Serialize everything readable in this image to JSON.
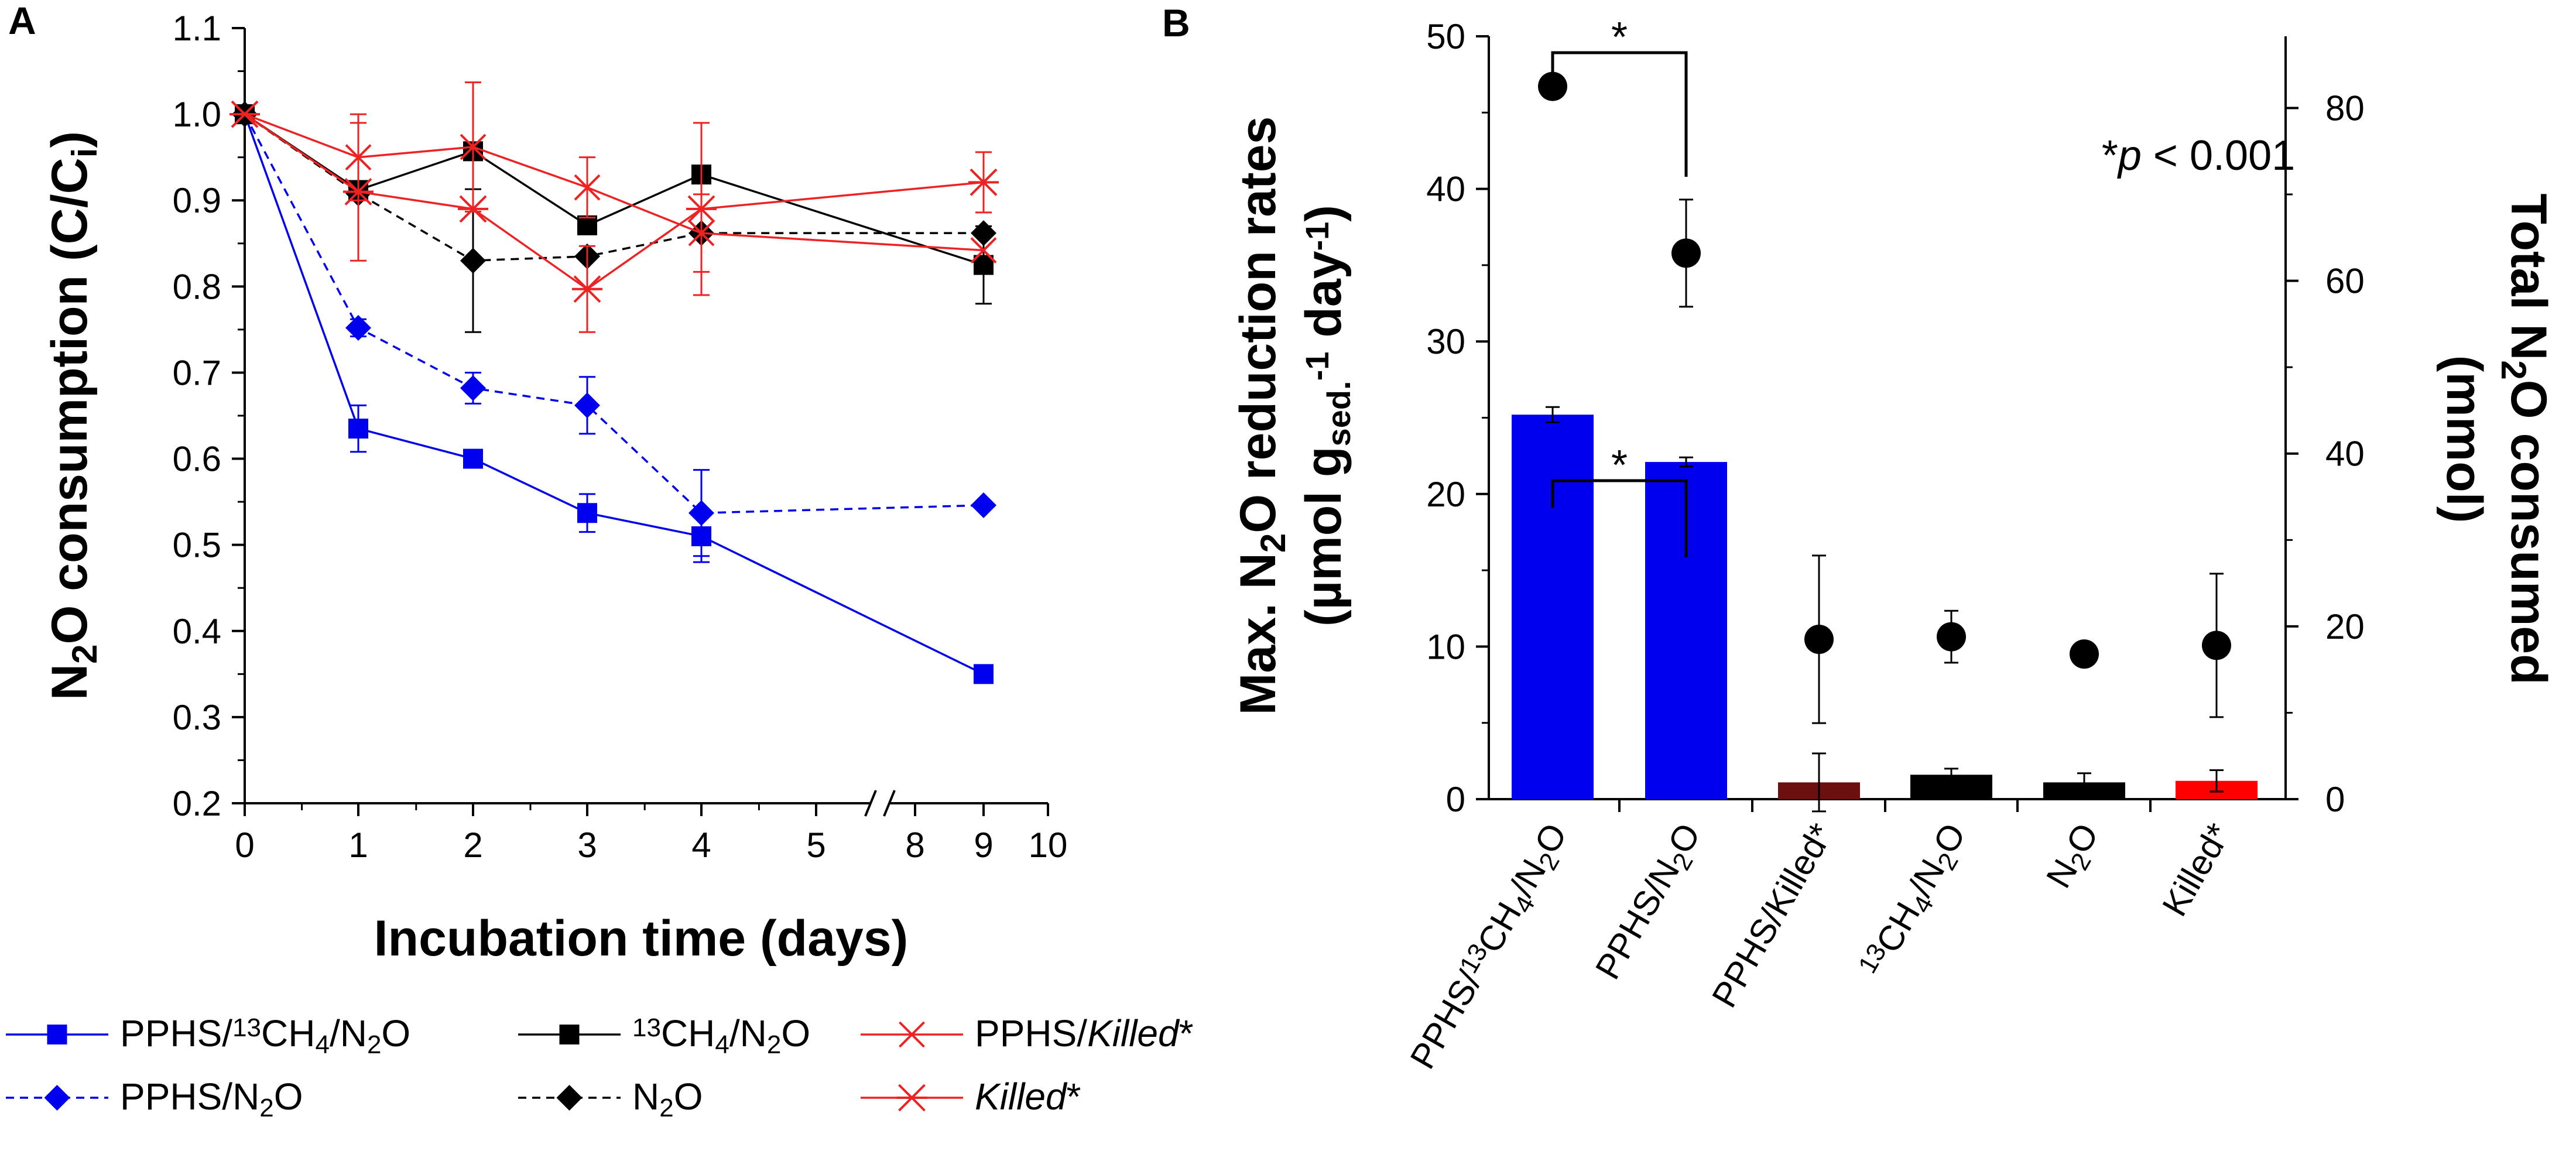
{
  "chart_data": [
    {
      "panel": "A",
      "type": "line",
      "xlabel": "Incubation time (days)",
      "ylabel": "N2O consumption (C/Ci)",
      "ylabel_parts": {
        "pre": "N",
        "sub1": "2",
        "mid": "O consumption (C/C",
        "sub2": "i",
        "post": ")"
      },
      "ylim": [
        0.2,
        1.1
      ],
      "x_ticks": [
        "0",
        "1",
        "2",
        "3",
        "4",
        "5",
        "8",
        "9",
        "10"
      ],
      "y_ticks": [
        "0.2",
        "0.3",
        "0.4",
        "0.5",
        "0.6",
        "0.7",
        "0.8",
        "0.9",
        "1.0",
        "1.1"
      ],
      "axis_break": "between 5 and 8",
      "series": [
        {
          "name": "PPHS/13CH4/N2O",
          "color": "#0000ee",
          "marker": "square",
          "dash": "solid",
          "x": [
            0,
            1,
            2,
            3,
            4,
            9
          ],
          "y": [
            1.0,
            0.635,
            0.6,
            0.537,
            0.51,
            0.35
          ],
          "err": [
            0,
            0.027,
            0.01,
            0.022,
            0.03,
            0.0
          ]
        },
        {
          "name": "PPHS/N2O",
          "color": "#0000ee",
          "marker": "diamond",
          "dash": "dashed",
          "x": [
            0,
            1,
            2,
            3,
            4,
            9
          ],
          "y": [
            1.0,
            0.752,
            0.682,
            0.662,
            0.537,
            0.546
          ],
          "err": [
            0,
            0.01,
            0.018,
            0.033,
            0.05,
            0.0
          ]
        },
        {
          "name": "13CH4/N2O",
          "color": "#000000",
          "marker": "square",
          "dash": "solid",
          "x": [
            0,
            1,
            2,
            3,
            4,
            9
          ],
          "y": [
            1.0,
            0.912,
            0.957,
            0.871,
            0.93,
            0.825
          ],
          "err": [
            0,
            0.0,
            0.0,
            0.0,
            0.0,
            0.045
          ]
        },
        {
          "name": "N2O",
          "color": "#000000",
          "marker": "diamond",
          "dash": "dashed",
          "x": [
            0,
            1,
            2,
            3,
            4,
            9
          ],
          "y": [
            1.0,
            0.908,
            0.83,
            0.835,
            0.862,
            0.862
          ],
          "err": [
            0,
            0.0,
            0.083,
            0.0,
            0.0,
            0.0
          ]
        },
        {
          "name": "PPHS/Killed*",
          "color": "#ee2222",
          "marker": "x",
          "dash": "solid",
          "x": [
            0,
            1,
            2,
            3,
            4,
            9
          ],
          "y": [
            1.0,
            0.95,
            0.962,
            0.915,
            0.862,
            0.842
          ],
          "err": [
            0,
            0.05,
            0.075,
            0.035,
            0.045,
            0.0
          ]
        },
        {
          "name": "Killed*",
          "color": "#ee2222",
          "marker": "asterisk",
          "dash": "solid",
          "x": [
            0,
            1,
            2,
            3,
            4,
            9
          ],
          "y": [
            1.0,
            0.91,
            0.89,
            0.797,
            0.89,
            0.921
          ],
          "err": [
            0,
            0.08,
            0.0,
            0.05,
            0.1,
            0.035
          ]
        }
      ],
      "legend": [
        {
          "pre": "PPHS/",
          "sup": "13",
          "mid": "CH",
          "sub": "4",
          "post": "/N",
          "sub2": "2",
          "end": "O",
          "italic": false
        },
        {
          "pre": "",
          "sup": "13",
          "mid": "CH",
          "sub": "4",
          "post": "/N",
          "sub2": "2",
          "end": "O",
          "italic": false
        },
        {
          "pre": "PPHS/",
          "italic_text": "Killed",
          "tail": "*"
        },
        {
          "pre": "PPHS/N",
          "sub": "2",
          "end": "O"
        },
        {
          "pre": "N",
          "sub": "2",
          "end": "O"
        },
        {
          "pre": "",
          "italic_text": "Killed",
          "tail": "*"
        }
      ]
    },
    {
      "panel": "B",
      "type": "bar",
      "categories": [
        "PPHS/13CH4/N2O",
        "PPHS/N2O",
        "PPHS/Killed*",
        "13CH4/N2O",
        "N2O",
        "Killed*"
      ],
      "category_labels": [
        {
          "a": "PPHS/",
          "sup": "13",
          "b": "CH",
          "sub": "4",
          "c": "/N",
          "sub2": "2",
          "d": "O"
        },
        {
          "a": "PPHS/N",
          "sub": "2",
          "b": "O"
        },
        {
          "a": "PPHS/Killed*"
        },
        {
          "sup": "13",
          "a": "CH",
          "sub": "4",
          "b": "/N",
          "sub2": "2",
          "c": "O"
        },
        {
          "a": "N",
          "sub": "2",
          "b": "O"
        },
        {
          "a": "Killed*"
        }
      ],
      "bar_values": [
        25.2,
        22.1,
        1.1,
        1.6,
        1.1,
        1.2
      ],
      "bar_errors": [
        0.5,
        0.3,
        1.9,
        0.4,
        0.6,
        0.7
      ],
      "bar_colors": [
        "#0000ee",
        "#0000ee",
        "#6b0f0f",
        "#000000",
        "#000000",
        "#ff0000"
      ],
      "right_values": [
        82.5,
        63.2,
        18.5,
        18.8,
        16.8,
        17.8
      ],
      "right_errors": [
        0,
        6.2,
        9.7,
        3.0,
        0,
        8.3
      ],
      "ylim_left": [
        0,
        50
      ],
      "ylim_right": [
        0,
        88.3
      ],
      "left_ticks": [
        "0",
        "10",
        "20",
        "30",
        "40",
        "50"
      ],
      "right_ticks": [
        "0",
        "20",
        "40",
        "60",
        "80"
      ],
      "ylabel_left_line1": "Max. N2O reduction rates",
      "ylabel_left_line1_parts": {
        "a": "Max. N",
        "sub": "2",
        "b": "O reduction rates"
      },
      "ylabel_left_line2_parts": {
        "a": "(µmol  g",
        "sub": "sed.",
        "sup": "-1",
        "b": " day",
        "sup2": "-1",
        "c": ")"
      },
      "ylabel_right_line1_parts": {
        "a": "Total N",
        "sub": "2",
        "b": "O consumed"
      },
      "ylabel_right_line2": "(mmol)",
      "significance_star": "*",
      "annotation": {
        "a": "*",
        "b": "p",
        "c": " < 0.001"
      }
    }
  ]
}
